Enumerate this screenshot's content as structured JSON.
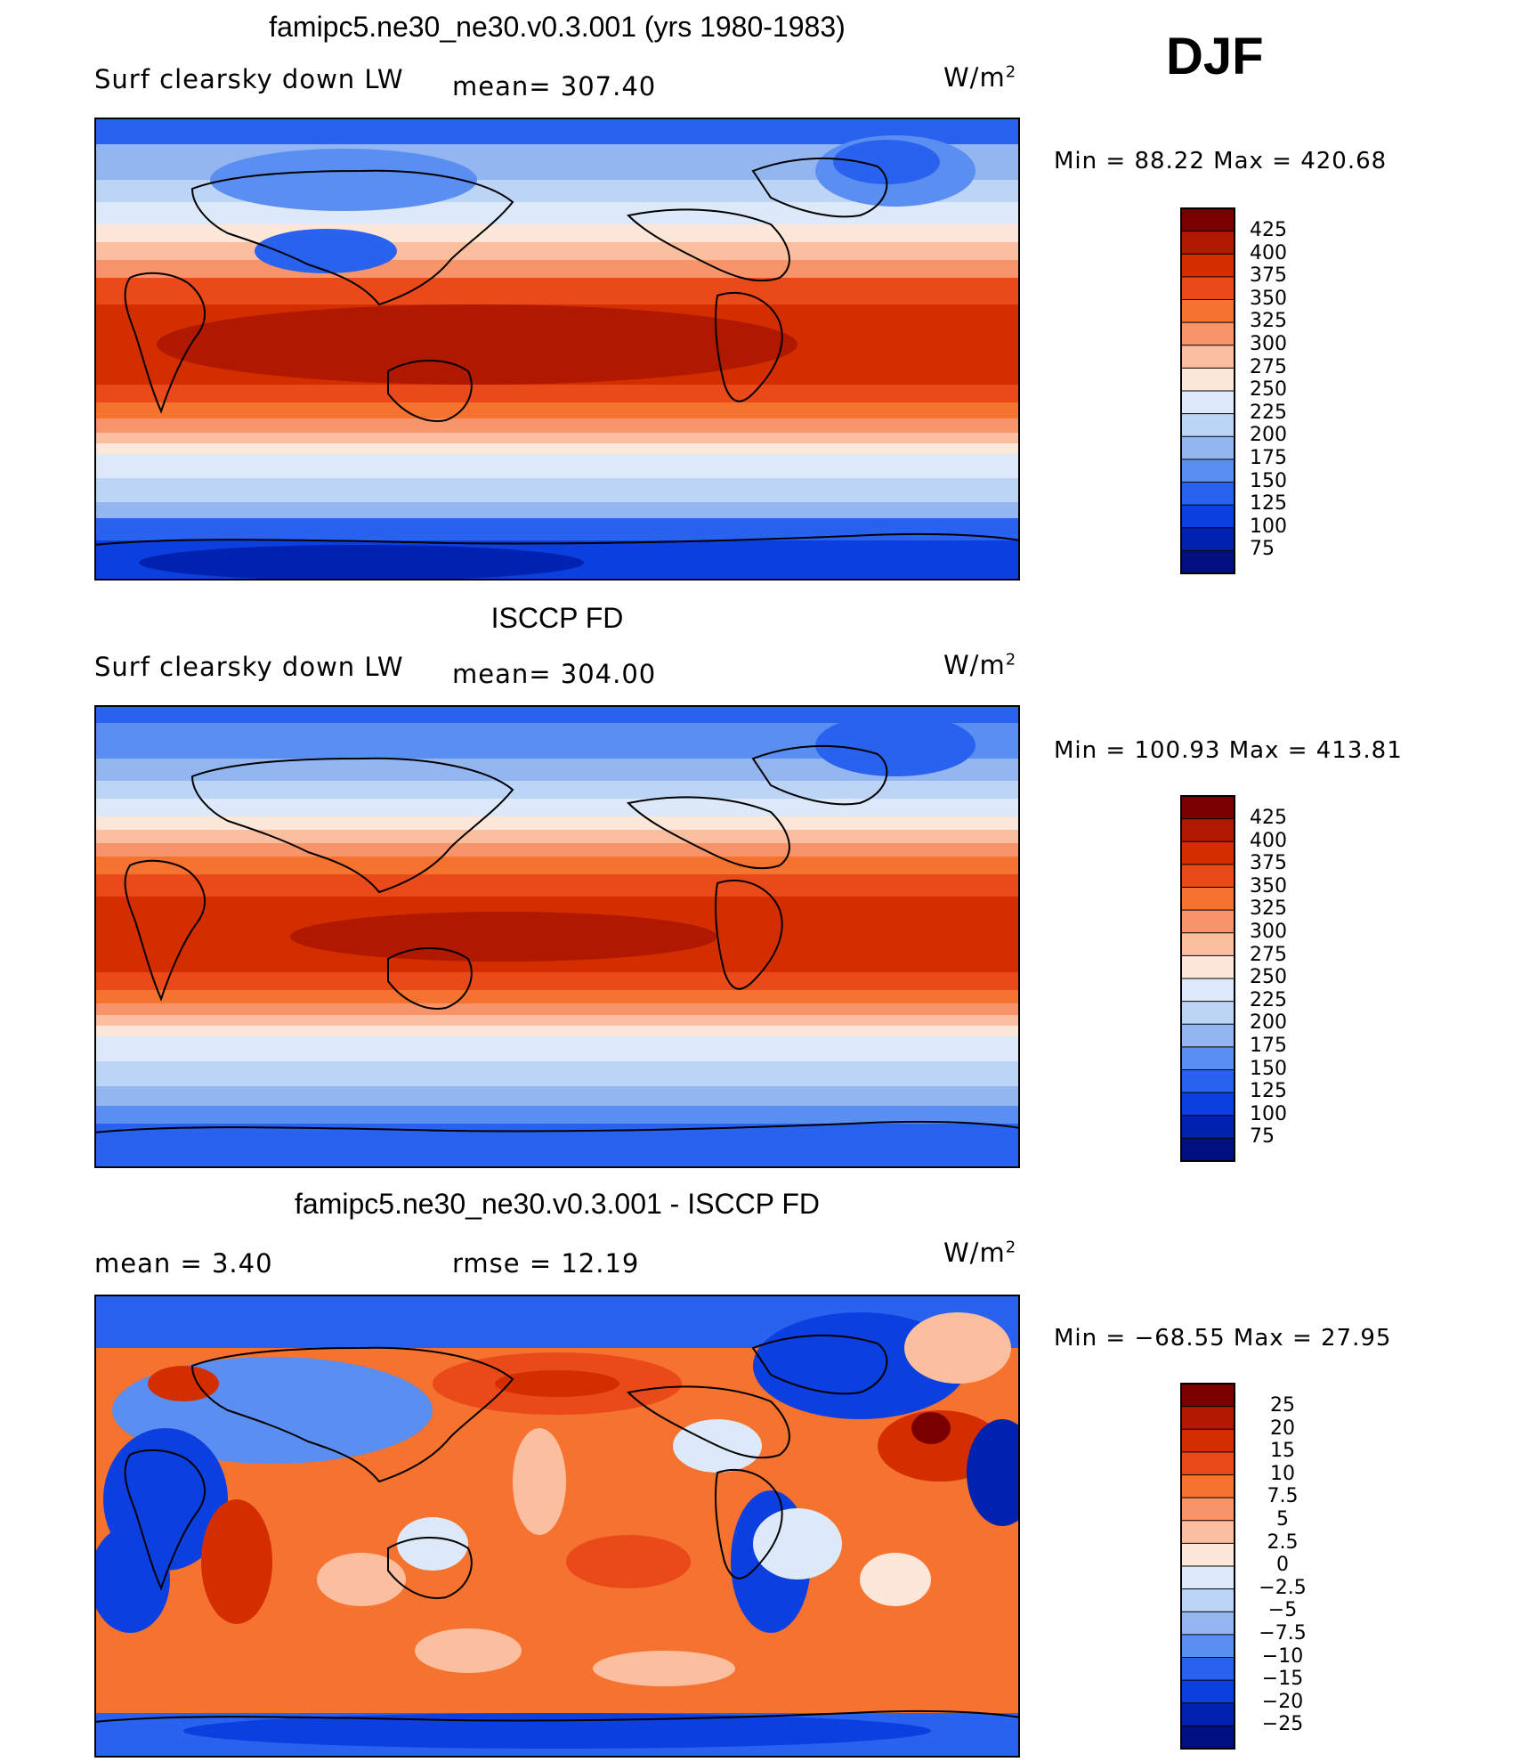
{
  "season": "DJF",
  "units_base": "W/m",
  "units_exp": "2",
  "panels": [
    {
      "title": "famipc5.ne30_ne30.v0.3.001 (yrs 1980-1983)",
      "left_label": "Surf clearsky down LW",
      "mid_label": "mean=  307.40",
      "minmax": "Min =   88.22 Max = 420.68",
      "colorbar_labels": [
        "425",
        "400",
        "375",
        "350",
        "325",
        "300",
        "275",
        "250",
        "225",
        "200",
        "175",
        "150",
        "125",
        "100",
        "75"
      ]
    },
    {
      "title": "ISCCP FD",
      "left_label": "Surf clearsky down LW",
      "mid_label": "mean=  304.00",
      "minmax": "Min = 100.93 Max = 413.81",
      "colorbar_labels": [
        "425",
        "400",
        "375",
        "350",
        "325",
        "300",
        "275",
        "250",
        "225",
        "200",
        "175",
        "150",
        "125",
        "100",
        "75"
      ]
    },
    {
      "title": "famipc5.ne30_ne30.v0.3.001 - ISCCP FD",
      "left_label": "mean =    3.40",
      "mid_label": "rmse =   12.19",
      "minmax": "Min = −68.55 Max =   27.95",
      "colorbar_labels": [
        "25",
        "20",
        "15",
        "10",
        "7.5",
        "5",
        "2.5",
        "0",
        "−2.5",
        "−5",
        "−7.5",
        "−10",
        "−15",
        "−20",
        "−25"
      ]
    }
  ],
  "colors": {
    "ramp": [
      "#7a0000",
      "#b01800",
      "#d42e00",
      "#ea4a1a",
      "#f5722f",
      "#f8946a",
      "#fbbfa0",
      "#fde7d8",
      "#dde9f8",
      "#bcd4f5",
      "#93b5f0",
      "#5a8ef0",
      "#2a62f0",
      "#0c3fe0",
      "#0022b0",
      "#001080"
    ]
  }
}
